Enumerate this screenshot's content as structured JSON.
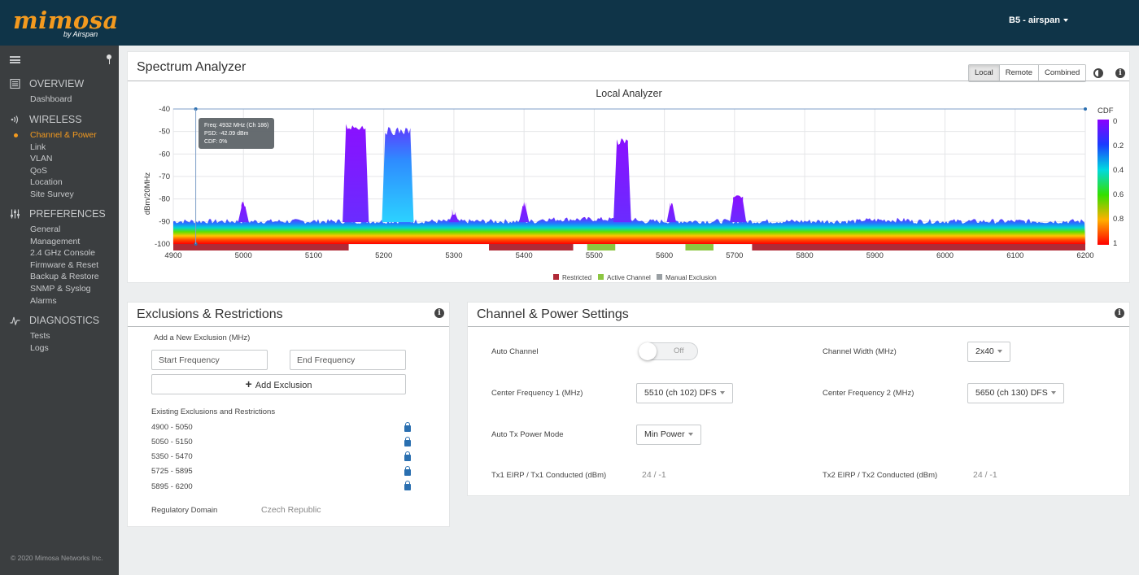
{
  "header": {
    "logo_text": "mimosa",
    "logo_sub": "by Airspan",
    "user_menu": "B5 - airspan"
  },
  "sidebar": {
    "sections": [
      {
        "title": "OVERVIEW",
        "icon": "overview-icon",
        "items": [
          "Dashboard"
        ]
      },
      {
        "title": "WIRELESS",
        "icon": "wireless-icon",
        "items": [
          "Channel & Power",
          "Link",
          "VLAN",
          "QoS",
          "Location",
          "Site Survey"
        ]
      },
      {
        "title": "PREFERENCES",
        "icon": "preferences-icon",
        "items": [
          "General",
          "Management",
          "2.4 GHz Console",
          "Firmware & Reset",
          "Backup & Restore",
          "SNMP & Syslog",
          "Alarms"
        ]
      },
      {
        "title": "DIAGNOSTICS",
        "icon": "diagnostics-icon",
        "items": [
          "Tests",
          "Logs"
        ]
      }
    ],
    "active_item": "Channel & Power",
    "copyright": "© 2020 Mimosa Networks Inc."
  },
  "spectrum": {
    "title": "Spectrum Analyzer",
    "view_buttons": [
      "Local",
      "Remote",
      "Combined"
    ],
    "active_view": "Local",
    "chart_title": "Local  Analyzer"
  },
  "chart_data": {
    "type": "heatmap",
    "title": "Local  Analyzer",
    "xlabel": "",
    "ylabel": "dBm/20MHz",
    "x_ticks": [
      4900,
      5000,
      5100,
      5200,
      5300,
      5400,
      5500,
      5600,
      5700,
      5800,
      5900,
      6000,
      6100,
      6200
    ],
    "y_ticks": [
      -40,
      -50,
      -60,
      -70,
      -80,
      -90,
      -100
    ],
    "xlim": [
      4900,
      6200
    ],
    "ylim": [
      -100,
      -40
    ],
    "colorbar": {
      "label": "CDF",
      "ticks": [
        "0",
        "0.2",
        "0.4",
        "0.6",
        "0.8",
        "1"
      ]
    },
    "noise_floor_dbm": -91,
    "peaks": [
      {
        "freq": 5000,
        "top_dbm": -81,
        "width": 6
      },
      {
        "freq": 5160,
        "top_dbm": -46,
        "width": 28
      },
      {
        "freq": 5220,
        "top_dbm": -48,
        "width": 36
      },
      {
        "freq": 5300,
        "top_dbm": -84,
        "width": 5
      },
      {
        "freq": 5400,
        "top_dbm": -81,
        "width": 5
      },
      {
        "freq": 5540,
        "top_dbm": -53,
        "width": 16
      },
      {
        "freq": 5610,
        "top_dbm": -80,
        "width": 4
      },
      {
        "freq": 5705,
        "top_dbm": -78,
        "width": 14
      }
    ],
    "bands": [
      {
        "type": "Restricted",
        "start": 4900,
        "end": 5150
      },
      {
        "type": "Restricted",
        "start": 5350,
        "end": 5470
      },
      {
        "type": "Active Channel",
        "start": 5490,
        "end": 5530
      },
      {
        "type": "Active Channel",
        "start": 5630,
        "end": 5670
      },
      {
        "type": "Restricted",
        "start": 5725,
        "end": 5895
      },
      {
        "type": "Restricted",
        "start": 5895,
        "end": 6200
      }
    ],
    "legend": [
      "Restricted",
      "Active Channel",
      "Manual Exclusion"
    ],
    "legend_colors": {
      "Restricted": "#b02a37",
      "Active Channel": "#8cc641",
      "Manual Exclusion": "#9aa0a4"
    },
    "cursor": {
      "freq": 4932,
      "lines": [
        "Freq: 4932 MHz (Ch 186)",
        "PSD: -42.09 dBm",
        "CDF: 0%"
      ]
    }
  },
  "exclusions": {
    "title": "Exclusions & Restrictions",
    "add_label": "Add a New Exclusion  (MHz)",
    "start_placeholder": "Start Frequency",
    "end_placeholder": "End Frequency",
    "add_button": "Add Exclusion",
    "existing_label": "Existing Exclusions and Restrictions",
    "ranges": [
      "4900 - 5050",
      "5050 - 5150",
      "5350 - 5470",
      "5725 - 5895",
      "5895 - 6200"
    ],
    "regulatory_label": "Regulatory Domain",
    "regulatory_value": "Czech Republic"
  },
  "channel": {
    "title": "Channel & Power Settings",
    "auto_channel_label": "Auto Channel",
    "auto_channel_value": "Off",
    "channel_width_label": "Channel Width (MHz)",
    "channel_width_value": "2x40",
    "cf1_label": "Center Frequency 1 (MHz)",
    "cf1_value": "5510 (ch 102) DFS",
    "cf2_label": "Center Frequency 2 (MHz)",
    "cf2_value": "5650 (ch 130) DFS",
    "auto_tx_label": "Auto Tx Power Mode",
    "auto_tx_value": "Min Power",
    "tx1_label": "Tx1 EIRP / Tx1 Conducted (dBm)",
    "tx1_value": "24 / -1",
    "tx2_label": "Tx2 EIRP / Tx2 Conducted (dBm)",
    "tx2_value": "24 / -1"
  },
  "colors": {
    "accent": "#f39a1f",
    "header_bg": "#0f3448",
    "sidebar_bg": "#3b3e40"
  }
}
